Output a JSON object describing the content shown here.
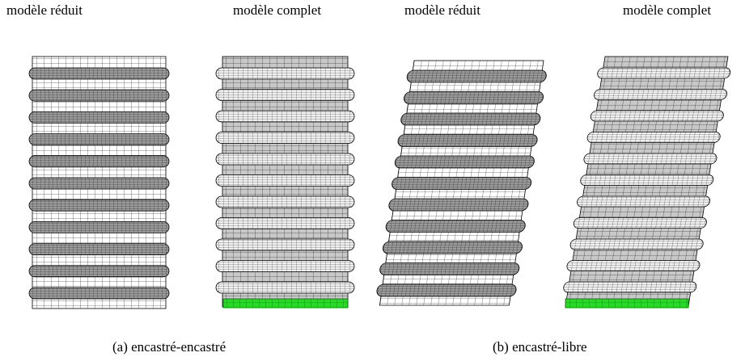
{
  "labels": {
    "reduced_left": "modèle réduit",
    "complete_left": "modèle complet",
    "reduced_right": "modèle réduit",
    "complete_right": "modèle complet"
  },
  "captions": {
    "a": "(a) encastré-encastré",
    "b": "(b) encastré-libre"
  },
  "colors": {
    "mesh_line": "#000000",
    "mesh_fill_complete": "#c8c8c8",
    "mesh_fill_reduced": "#ffffff",
    "corrugation_fill": "#8a8a8a",
    "clamped_base": "#22dd22",
    "edge_accent": "#c04040"
  }
}
